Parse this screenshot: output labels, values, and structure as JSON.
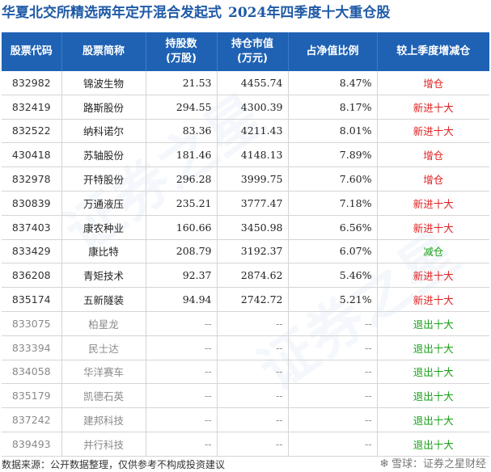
{
  "title": {
    "fund_name": "华夏北交所精选两年定开混合发起式",
    "subtitle": "2024年四季度十大重仓股"
  },
  "table": {
    "headers": {
      "code": "股票代码",
      "name": "股票简称",
      "shares_l1": "持股数",
      "shares_l2": "(万股)",
      "value_l1": "持仓市值",
      "value_l2": "(万元)",
      "ratio": "占净值比例",
      "change": "较上季度增减仓"
    },
    "rows": [
      {
        "code": "832982",
        "name": "锦波生物",
        "shares": "21.53",
        "value": "4455.74",
        "ratio": "8.47%",
        "change": "增仓",
        "type": "inc"
      },
      {
        "code": "832419",
        "name": "路斯股份",
        "shares": "294.55",
        "value": "4300.39",
        "ratio": "8.17%",
        "change": "新进十大",
        "type": "new"
      },
      {
        "code": "832522",
        "name": "纳科诺尔",
        "shares": "83.36",
        "value": "4211.43",
        "ratio": "8.01%",
        "change": "新进十大",
        "type": "new"
      },
      {
        "code": "430418",
        "name": "苏轴股份",
        "shares": "181.46",
        "value": "4148.13",
        "ratio": "7.89%",
        "change": "增仓",
        "type": "inc"
      },
      {
        "code": "832978",
        "name": "开特股份",
        "shares": "296.28",
        "value": "3999.75",
        "ratio": "7.60%",
        "change": "增仓",
        "type": "inc"
      },
      {
        "code": "830839",
        "name": "万通液压",
        "shares": "235.21",
        "value": "3777.47",
        "ratio": "7.18%",
        "change": "新进十大",
        "type": "new"
      },
      {
        "code": "837403",
        "name": "康农种业",
        "shares": "160.66",
        "value": "3450.98",
        "ratio": "6.56%",
        "change": "新进十大",
        "type": "new"
      },
      {
        "code": "833429",
        "name": "康比特",
        "shares": "208.79",
        "value": "3192.37",
        "ratio": "6.07%",
        "change": "减仓",
        "type": "dec"
      },
      {
        "code": "836208",
        "name": "青矩技术",
        "shares": "92.37",
        "value": "2874.62",
        "ratio": "5.46%",
        "change": "新进十大",
        "type": "new"
      },
      {
        "code": "835174",
        "name": "五新隧装",
        "shares": "94.94",
        "value": "2742.72",
        "ratio": "5.21%",
        "change": "新进十大",
        "type": "new"
      },
      {
        "code": "833075",
        "name": "柏星龙",
        "shares": "--",
        "value": "--",
        "ratio": "--",
        "change": "退出十大",
        "type": "out"
      },
      {
        "code": "833394",
        "name": "民士达",
        "shares": "--",
        "value": "--",
        "ratio": "--",
        "change": "退出十大",
        "type": "out"
      },
      {
        "code": "834058",
        "name": "华洋赛车",
        "shares": "--",
        "value": "--",
        "ratio": "--",
        "change": "退出十大",
        "type": "out"
      },
      {
        "code": "835179",
        "name": "凯德石英",
        "shares": "--",
        "value": "--",
        "ratio": "--",
        "change": "退出十大",
        "type": "out"
      },
      {
        "code": "837242",
        "name": "建邦科技",
        "shares": "--",
        "value": "--",
        "ratio": "--",
        "change": "退出十大",
        "type": "out"
      },
      {
        "code": "839493",
        "name": "并行科技",
        "shares": "--",
        "value": "--",
        "ratio": "--",
        "change": "退出十大",
        "type": "out"
      }
    ]
  },
  "colors": {
    "inc": "#e02020",
    "new": "#e02020",
    "dec": "#1aa01a",
    "out": "#1aa01a",
    "header_bg": "#1f62b4",
    "title": "#1f5aa6"
  },
  "footer": {
    "source": "数据来源：公开数据整理，仅供参考不构成投资建议",
    "brand": "雪球：证券之星财经"
  },
  "icons": {
    "brand_icon": "snowball-icon"
  }
}
